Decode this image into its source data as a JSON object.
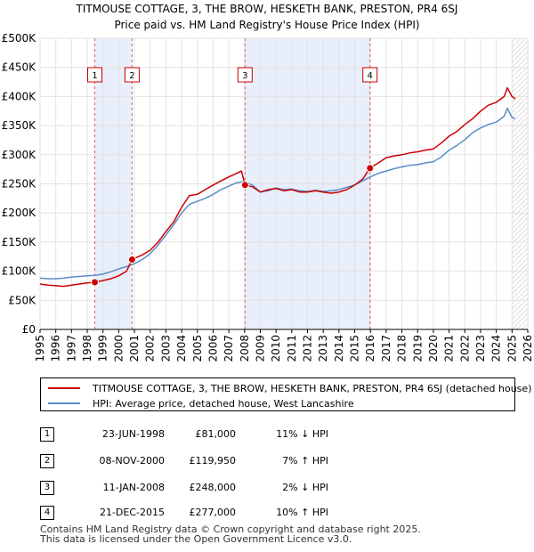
{
  "chart_data": {
    "type": "line",
    "title": "TITMOUSE COTTAGE, 3, THE BROW, HESKETH BANK, PRESTON, PR4 6SJ",
    "subtitle": "Price paid vs. HM Land Registry's House Price Index (HPI)",
    "xlim": [
      1995,
      2026
    ],
    "ylim": [
      0,
      500000
    ],
    "x_ticks": [
      1995,
      1996,
      1997,
      1998,
      1999,
      2000,
      2001,
      2002,
      2003,
      2004,
      2005,
      2006,
      2007,
      2008,
      2009,
      2010,
      2011,
      2012,
      2013,
      2014,
      2015,
      2016,
      2017,
      2018,
      2019,
      2020,
      2021,
      2022,
      2023,
      2024,
      2025,
      2026
    ],
    "y_ticks": [
      {
        "value": 0,
        "label": "£0"
      },
      {
        "value": 50000,
        "label": "£50K"
      },
      {
        "value": 100000,
        "label": "£100K"
      },
      {
        "value": 150000,
        "label": "£150K"
      },
      {
        "value": 200000,
        "label": "£200K"
      },
      {
        "value": 250000,
        "label": "£250K"
      },
      {
        "value": 300000,
        "label": "£300K"
      },
      {
        "value": 350000,
        "label": "£350K"
      },
      {
        "value": 400000,
        "label": "£400K"
      },
      {
        "value": 450000,
        "label": "£450K"
      },
      {
        "value": 500000,
        "label": "£500K"
      }
    ],
    "series": [
      {
        "name": "TITMOUSE COTTAGE, 3, THE BROW, HESKETH BANK, PRESTON, PR4 6SJ (detached house)",
        "color": "#cc0000",
        "x": [
          1995.0,
          1995.5,
          1996.0,
          1996.5,
          1997.0,
          1997.5,
          1998.0,
          1998.48,
          1999.0,
          1999.5,
          2000.0,
          2000.5,
          2000.85,
          2001.0,
          2001.5,
          2002.0,
          2002.5,
          2003.0,
          2003.5,
          2004.0,
          2004.5,
          2005.0,
          2005.5,
          2006.0,
          2006.5,
          2007.0,
          2007.5,
          2007.8,
          2008.03,
          2008.5,
          2009.0,
          2009.5,
          2010.0,
          2010.5,
          2011.0,
          2011.5,
          2012.0,
          2012.5,
          2013.0,
          2013.5,
          2014.0,
          2014.5,
          2015.0,
          2015.5,
          2015.97,
          2016.5,
          2017.0,
          2017.5,
          2018.0,
          2018.5,
          2019.0,
          2019.5,
          2020.0,
          2020.5,
          2021.0,
          2021.5,
          2022.0,
          2022.5,
          2023.0,
          2023.5,
          2024.0,
          2024.5,
          2024.7,
          2025.0,
          2025.2
        ],
        "y": [
          78000,
          76000,
          75000,
          74000,
          76000,
          78000,
          80000,
          81000,
          84000,
          87000,
          92000,
          100000,
          119950,
          122000,
          128000,
          136000,
          150000,
          168000,
          185000,
          210000,
          230000,
          232000,
          240000,
          248000,
          255000,
          262000,
          268000,
          272000,
          248000,
          245000,
          236000,
          240000,
          242000,
          238000,
          240000,
          236000,
          236000,
          238000,
          236000,
          234000,
          236000,
          240000,
          248000,
          258000,
          277000,
          286000,
          295000,
          298000,
          300000,
          303000,
          305000,
          308000,
          310000,
          320000,
          332000,
          340000,
          352000,
          362000,
          375000,
          385000,
          390000,
          400000,
          415000,
          400000,
          396000
        ]
      },
      {
        "name": "HPI: Average price, detached house, West Lancashire",
        "color": "#5b8cc8",
        "x": [
          1995.0,
          1995.5,
          1996.0,
          1996.5,
          1997.0,
          1997.5,
          1998.0,
          1998.5,
          1999.0,
          1999.5,
          2000.0,
          2000.5,
          2001.0,
          2001.5,
          2002.0,
          2002.5,
          2003.0,
          2003.5,
          2004.0,
          2004.5,
          2005.0,
          2005.5,
          2006.0,
          2006.5,
          2007.0,
          2007.5,
          2008.0,
          2008.5,
          2009.0,
          2009.5,
          2010.0,
          2010.5,
          2011.0,
          2011.5,
          2012.0,
          2012.5,
          2013.0,
          2013.5,
          2014.0,
          2014.5,
          2015.0,
          2015.5,
          2016.0,
          2016.5,
          2017.0,
          2017.5,
          2018.0,
          2018.5,
          2019.0,
          2019.5,
          2020.0,
          2020.5,
          2021.0,
          2021.5,
          2022.0,
          2022.5,
          2023.0,
          2023.5,
          2024.0,
          2024.5,
          2024.7,
          2025.0,
          2025.2
        ],
        "y": [
          88000,
          87000,
          87000,
          88000,
          90000,
          91000,
          92000,
          93000,
          95000,
          99000,
          104000,
          108000,
          113000,
          120000,
          130000,
          145000,
          162000,
          180000,
          200000,
          215000,
          220000,
          225000,
          232000,
          240000,
          246000,
          252000,
          254000,
          248000,
          236000,
          238000,
          243000,
          240000,
          241000,
          238000,
          237000,
          239000,
          237000,
          238000,
          240000,
          244000,
          248000,
          255000,
          262000,
          268000,
          272000,
          276000,
          279000,
          282000,
          283000,
          286000,
          288000,
          296000,
          308000,
          316000,
          326000,
          338000,
          346000,
          352000,
          356000,
          366000,
          380000,
          364000,
          362000
        ]
      }
    ],
    "transactions": [
      {
        "n": "1",
        "date": "23-JUN-1998",
        "price": "£81,000",
        "hpi": "11% ↓ HPI",
        "x": 1998.48,
        "value": 81000
      },
      {
        "n": "2",
        "date": "08-NOV-2000",
        "price": "£119,950",
        "hpi": "7% ↑ HPI",
        "x": 2000.85,
        "value": 119950
      },
      {
        "n": "3",
        "date": "11-JAN-2008",
        "price": "£248,000",
        "hpi": "2% ↓ HPI",
        "x": 2008.03,
        "value": 248000
      },
      {
        "n": "4",
        "date": "21-DEC-2015",
        "price": "£277,000",
        "hpi": "10% ↑ HPI",
        "x": 2015.97,
        "value": 277000
      }
    ],
    "shaded_ranges": [
      [
        1998.48,
        2000.85
      ],
      [
        2008.03,
        2015.97
      ]
    ],
    "future_hatch_from": 2025.0,
    "legend": {
      "items": [
        "TITMOUSE COTTAGE, 3, THE BROW, HESKETH BANK, PRESTON, PR4 6SJ (detached house)",
        "HPI: Average price, detached house, West Lancashire"
      ]
    }
  },
  "footer": {
    "line1": "Contains HM Land Registry data © Crown copyright and database right 2025.",
    "line2": "This data is licensed under the Open Government Licence v3.0."
  }
}
